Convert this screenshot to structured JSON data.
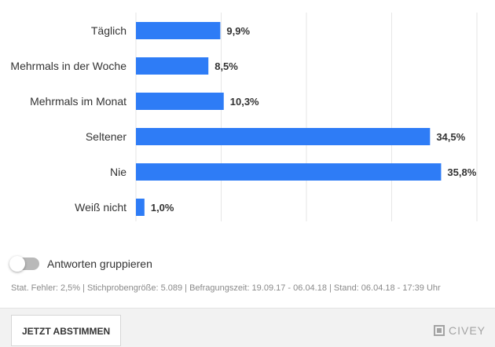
{
  "chart_data": {
    "type": "bar",
    "orientation": "horizontal",
    "categories": [
      "Täglich",
      "Mehrmals in der Woche",
      "Mehrmals im Monat",
      "Seltener",
      "Nie",
      "Weiß nicht"
    ],
    "values": [
      9.9,
      8.5,
      10.3,
      34.5,
      35.8,
      1.0
    ],
    "value_labels": [
      "9,9%",
      "8,5%",
      "10,3%",
      "34,5%",
      "35,8%",
      "1,0%"
    ],
    "xlim": [
      0,
      40
    ],
    "grid": true,
    "bar_color": "#2e7cf6"
  },
  "toggle": {
    "label": "Antworten gruppieren",
    "checked": false
  },
  "meta": "Stat. Fehler: 2,5% | Stichprobengröße: 5.089 | Befragungszeit: 19.09.17 - 06.04.18 | Stand: 06.04.18 - 17:39 Uhr",
  "footer": {
    "vote_button": "JETZT ABSTIMMEN",
    "brand": "CIVEY",
    "brand_icon": "civey-logo-icon"
  }
}
